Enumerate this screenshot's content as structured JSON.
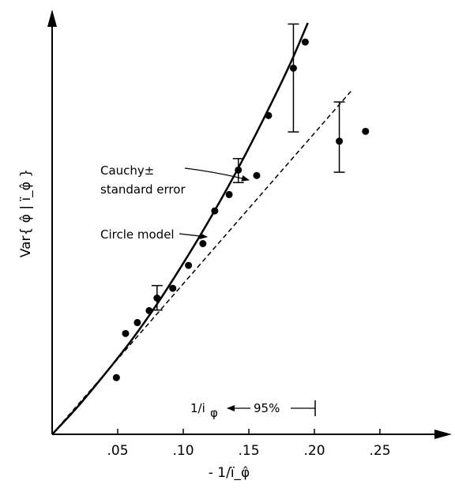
{
  "chart_data": {
    "type": "scatter",
    "title": "",
    "xlabel": "- 1/ï_φ̂",
    "ylabel": "Var{ φ̂ | ï_φ̂ }",
    "xlim": [
      0,
      0.275
    ],
    "x_ticks": [
      ".05",
      ".10",
      ".15",
      ".20",
      ".25"
    ],
    "y_ticks": [],
    "grid": false,
    "series": [
      {
        "name": "Cauchy",
        "style": "points",
        "x": [
          0.049,
          0.056,
          0.065,
          0.074,
          0.08,
          0.092,
          0.104,
          0.115,
          0.124,
          0.135,
          0.142,
          0.156,
          0.165,
          0.184,
          0.193,
          0.219,
          0.239
        ],
        "y": [
          0.104,
          0.185,
          0.205,
          0.227,
          0.25,
          0.268,
          0.31,
          0.35,
          0.41,
          0.44,
          0.485,
          0.475,
          0.585,
          0.672,
          0.72,
          0.538,
          0.556
        ],
        "error_bars": [
          {
            "x": 0.08,
            "low": 0.228,
            "high": 0.273
          },
          {
            "x": 0.142,
            "low": 0.462,
            "high": 0.506
          },
          {
            "x": 0.184,
            "low": 0.555,
            "high": 0.753
          },
          {
            "x": 0.219,
            "low": 0.481,
            "high": 0.61
          }
        ]
      },
      {
        "name": "Circle model",
        "style": "solid-curve",
        "x": [
          0,
          0.02,
          0.04,
          0.06,
          0.08,
          0.1,
          0.12,
          0.14,
          0.16,
          0.18,
          0.195
        ],
        "y": [
          0,
          0.052,
          0.11,
          0.171,
          0.239,
          0.314,
          0.394,
          0.48,
          0.573,
          0.672,
          0.755
        ]
      },
      {
        "name": "",
        "style": "dashed-line",
        "x": [
          0,
          0.228
        ],
        "y": [
          0,
          0.63
        ]
      }
    ],
    "annotations": {
      "cauchy_label_line1": "Cauchy±",
      "cauchy_label_line2": "standard error",
      "circle_label": "Circle model",
      "marker_label": "1/i",
      "marker_sub": "φ",
      "percent_label": "95%"
    }
  }
}
